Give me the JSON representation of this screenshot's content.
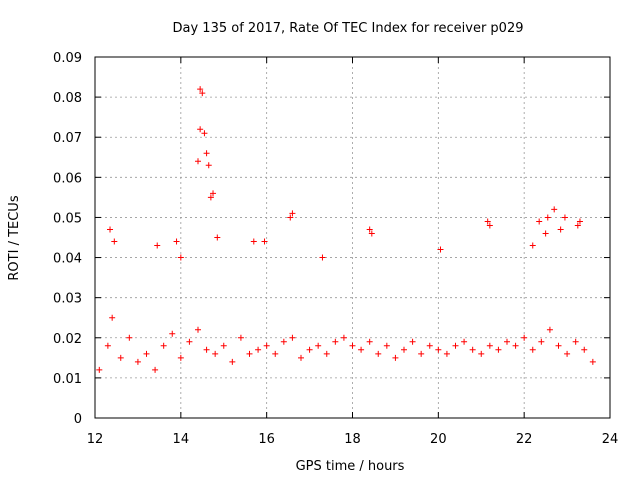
{
  "chart_data": {
    "type": "scatter",
    "title": "Day 135 of 2017, Rate Of TEC Index for receiver p029",
    "xlabel": "GPS time / hours",
    "ylabel": "ROTI / TECUs",
    "xlim": [
      12,
      24
    ],
    "ylim": [
      0,
      0.09
    ],
    "x_ticks": [
      "12",
      "14",
      "16",
      "18",
      "20",
      "22",
      "24"
    ],
    "y_ticks": [
      "0",
      "0.01",
      "0.02",
      "0.03",
      "0.04",
      "0.05",
      "0.06",
      "0.07",
      "0.08",
      "0.09"
    ],
    "grid": true,
    "legend": "none",
    "marker": "+",
    "color": "#ff0000",
    "series": [
      {
        "x": [
          12.1,
          12.3,
          12.4,
          12.6,
          12.8,
          13.0,
          13.2,
          13.4,
          13.6,
          13.8,
          14.0,
          14.2,
          14.4,
          14.6,
          14.8,
          15.0,
          15.2,
          15.4,
          15.6,
          15.8,
          16.0,
          16.2,
          16.4,
          16.6,
          16.8,
          17.0,
          17.2,
          17.4,
          17.6,
          17.8,
          18.0,
          18.2,
          18.4,
          18.6,
          18.8,
          19.0,
          19.2,
          19.4,
          19.6,
          19.8,
          20.0,
          20.2,
          20.4,
          20.6,
          20.8,
          21.0,
          21.2,
          21.4,
          21.6,
          21.8,
          22.0,
          22.2,
          22.4,
          22.6,
          22.8,
          23.0,
          23.2,
          23.4,
          23.6,
          12.35,
          12.45,
          13.45,
          13.9,
          14.0,
          14.4,
          14.45,
          14.5,
          14.45,
          14.55,
          14.6,
          14.65,
          14.7,
          14.75,
          14.85,
          15.7,
          15.95,
          16.55,
          16.6,
          17.3,
          18.4,
          18.45,
          20.05,
          21.15,
          21.2,
          22.2,
          22.35,
          22.5,
          22.55,
          22.7,
          22.85,
          22.95,
          23.25,
          23.3
        ],
        "y": [
          0.012,
          0.018,
          0.025,
          0.015,
          0.02,
          0.014,
          0.016,
          0.012,
          0.018,
          0.021,
          0.015,
          0.019,
          0.022,
          0.017,
          0.016,
          0.018,
          0.014,
          0.02,
          0.016,
          0.017,
          0.018,
          0.016,
          0.019,
          0.02,
          0.015,
          0.017,
          0.018,
          0.016,
          0.019,
          0.02,
          0.018,
          0.017,
          0.019,
          0.016,
          0.018,
          0.015,
          0.017,
          0.019,
          0.016,
          0.018,
          0.017,
          0.016,
          0.018,
          0.019,
          0.017,
          0.016,
          0.018,
          0.017,
          0.019,
          0.018,
          0.02,
          0.017,
          0.019,
          0.022,
          0.018,
          0.016,
          0.019,
          0.017,
          0.014,
          0.047,
          0.044,
          0.043,
          0.044,
          0.04,
          0.064,
          0.072,
          0.081,
          0.082,
          0.071,
          0.066,
          0.063,
          0.055,
          0.056,
          0.045,
          0.044,
          0.044,
          0.05,
          0.051,
          0.04,
          0.047,
          0.046,
          0.042,
          0.049,
          0.048,
          0.043,
          0.049,
          0.046,
          0.05,
          0.052,
          0.047,
          0.05,
          0.048,
          0.049
        ]
      }
    ]
  }
}
